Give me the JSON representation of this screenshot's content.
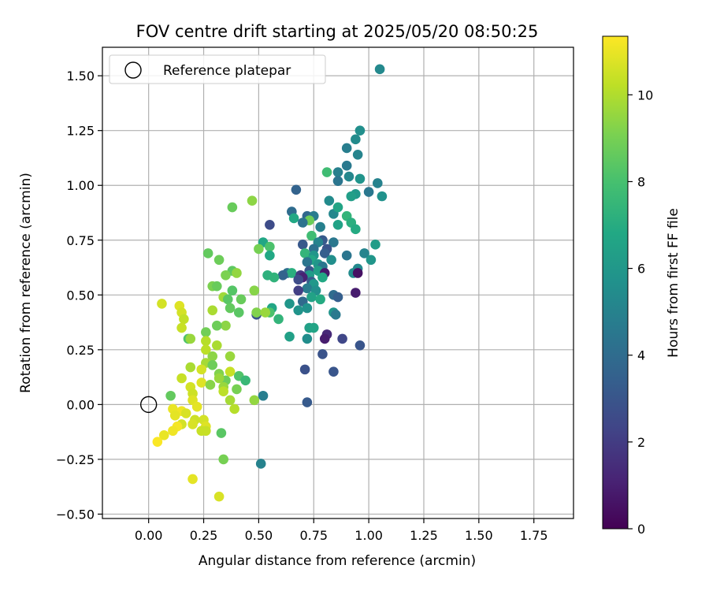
{
  "chart_data": {
    "type": "scatter",
    "title": "FOV centre drift starting at 2025/05/20 08:50:25",
    "xlabel": "Angular distance from reference (arcmin)",
    "ylabel": "Rotation from reference (arcmin)",
    "xlim": [
      -0.21,
      1.93
    ],
    "ylim": [
      -0.52,
      1.63
    ],
    "xticks": [
      0.0,
      0.25,
      0.5,
      0.75,
      1.0,
      1.25,
      1.5,
      1.75
    ],
    "xtick_labels": [
      "0.00",
      "0.25",
      "0.50",
      "0.75",
      "1.00",
      "1.25",
      "1.50",
      "1.75"
    ],
    "yticks": [
      -0.5,
      -0.25,
      0.0,
      0.25,
      0.5,
      0.75,
      1.0,
      1.25,
      1.5
    ],
    "ytick_labels": [
      "−0.50",
      "−0.25",
      "0.00",
      "0.25",
      "0.50",
      "0.75",
      "1.00",
      "1.25",
      "1.50"
    ],
    "grid": true,
    "legend": {
      "placement": "top-left",
      "entries": [
        "Reference platepar"
      ]
    },
    "reference_point": {
      "x": 0.0,
      "y": 0.0,
      "label": "Reference platepar"
    },
    "colorbar": {
      "label": "Hours from first FF file",
      "colormap": "viridis",
      "range": [
        0,
        11.35
      ],
      "ticks": [
        0,
        2,
        4,
        6,
        8,
        10
      ],
      "tick_labels": [
        "0",
        "2",
        "4",
        "6",
        "8",
        "10"
      ]
    },
    "points": [
      [
        1.05,
        1.53,
        5.3
      ],
      [
        0.96,
        1.25,
        5.6
      ],
      [
        0.94,
        1.21,
        5.4
      ],
      [
        0.9,
        1.17,
        4.8
      ],
      [
        0.95,
        1.14,
        5.1
      ],
      [
        0.9,
        1.09,
        4.6
      ],
      [
        0.86,
        1.06,
        4.9
      ],
      [
        0.91,
        1.04,
        5.2
      ],
      [
        0.86,
        1.02,
        4.4
      ],
      [
        0.96,
        1.03,
        5.8
      ],
      [
        0.81,
        1.06,
        7.8
      ],
      [
        1.04,
        1.01,
        5.0
      ],
      [
        0.67,
        0.98,
        3.6
      ],
      [
        0.94,
        0.96,
        6.0
      ],
      [
        1.0,
        0.97,
        4.5
      ],
      [
        0.92,
        0.95,
        6.3
      ],
      [
        1.06,
        0.95,
        5.7
      ],
      [
        0.82,
        0.93,
        5.4
      ],
      [
        0.84,
        0.87,
        5.2
      ],
      [
        0.86,
        0.9,
        6.6
      ],
      [
        0.65,
        0.88,
        4.0
      ],
      [
        0.72,
        0.86,
        3.8
      ],
      [
        0.75,
        0.86,
        4.7
      ],
      [
        0.66,
        0.85,
        6.8
      ],
      [
        0.9,
        0.86,
        7.4
      ],
      [
        0.73,
        0.84,
        8.8
      ],
      [
        0.86,
        0.82,
        6.5
      ],
      [
        0.92,
        0.83,
        7.1
      ],
      [
        0.55,
        0.82,
        2.6
      ],
      [
        0.7,
        0.83,
        4.3
      ],
      [
        0.78,
        0.81,
        4.9
      ],
      [
        0.94,
        0.8,
        6.9
      ],
      [
        0.74,
        0.77,
        7.8
      ],
      [
        0.79,
        0.75,
        3.2
      ],
      [
        0.77,
        0.74,
        5.1
      ],
      [
        0.84,
        0.74,
        4.5
      ],
      [
        0.52,
        0.74,
        6.7
      ],
      [
        1.03,
        0.73,
        6.2
      ],
      [
        0.7,
        0.73,
        3.1
      ],
      [
        0.75,
        0.71,
        4.2
      ],
      [
        0.81,
        0.71,
        3.0
      ],
      [
        0.55,
        0.72,
        8.1
      ],
      [
        0.5,
        0.71,
        9.0
      ],
      [
        0.71,
        0.69,
        7.4
      ],
      [
        0.8,
        0.69,
        3.4
      ],
      [
        0.98,
        0.69,
        5.1
      ],
      [
        0.75,
        0.68,
        5.9
      ],
      [
        0.9,
        0.68,
        4.4
      ],
      [
        0.55,
        0.68,
        6.8
      ],
      [
        0.74,
        0.66,
        6.7
      ],
      [
        0.83,
        0.66,
        5.6
      ],
      [
        1.01,
        0.66,
        5.9
      ],
      [
        0.72,
        0.65,
        4.4
      ],
      [
        0.77,
        0.64,
        5.9
      ],
      [
        0.79,
        0.63,
        4.5
      ],
      [
        0.95,
        0.62,
        5.3
      ],
      [
        0.73,
        0.61,
        3.1
      ],
      [
        0.77,
        0.61,
        6.4
      ],
      [
        0.93,
        0.6,
        5.4
      ],
      [
        0.8,
        0.6,
        0.8
      ],
      [
        0.95,
        0.6,
        0.5
      ],
      [
        0.63,
        0.6,
        4.1
      ],
      [
        0.73,
        0.59,
        6.2
      ],
      [
        0.65,
        0.6,
        7.1
      ],
      [
        0.69,
        0.59,
        1.9
      ],
      [
        0.61,
        0.59,
        3.6
      ],
      [
        0.7,
        0.58,
        1.1
      ],
      [
        0.79,
        0.58,
        6.8
      ],
      [
        0.54,
        0.59,
        7.2
      ],
      [
        0.57,
        0.58,
        7.3
      ],
      [
        0.68,
        0.57,
        2.6
      ],
      [
        0.74,
        0.56,
        3.3
      ],
      [
        0.75,
        0.55,
        6.0
      ],
      [
        0.72,
        0.53,
        4.7
      ],
      [
        0.68,
        0.52,
        2.1
      ],
      [
        0.76,
        0.52,
        5.6
      ],
      [
        0.84,
        0.5,
        4.0
      ],
      [
        0.94,
        0.51,
        0.9
      ],
      [
        0.86,
        0.49,
        3.4
      ],
      [
        0.74,
        0.49,
        6.5
      ],
      [
        0.78,
        0.48,
        6.9
      ],
      [
        0.7,
        0.47,
        3.9
      ],
      [
        0.64,
        0.46,
        5.9
      ],
      [
        0.72,
        0.44,
        5.7
      ],
      [
        0.56,
        0.44,
        6.7
      ],
      [
        0.68,
        0.43,
        5.8
      ],
      [
        0.84,
        0.42,
        5.8
      ],
      [
        0.55,
        0.42,
        8.1
      ],
      [
        0.85,
        0.41,
        4.6
      ],
      [
        0.49,
        0.41,
        3.0
      ],
      [
        0.59,
        0.39,
        7.4
      ],
      [
        0.73,
        0.35,
        6.4
      ],
      [
        0.75,
        0.35,
        6.6
      ],
      [
        0.64,
        0.31,
        6.4
      ],
      [
        0.72,
        0.3,
        5.5
      ],
      [
        0.81,
        0.32,
        1.3
      ],
      [
        0.8,
        0.3,
        0.9
      ],
      [
        0.88,
        0.3,
        2.4
      ],
      [
        0.96,
        0.27,
        3.0
      ],
      [
        0.79,
        0.23,
        2.9
      ],
      [
        0.71,
        0.16,
        2.8
      ],
      [
        0.84,
        0.15,
        3.0
      ],
      [
        0.72,
        0.01,
        3.2
      ],
      [
        0.52,
        0.04,
        4.8
      ],
      [
        0.51,
        -0.27,
        5.0
      ],
      [
        0.47,
        0.93,
        9.4
      ],
      [
        0.38,
        0.9,
        8.7
      ],
      [
        0.27,
        0.69,
        8.6
      ],
      [
        0.32,
        0.66,
        8.8
      ],
      [
        0.38,
        0.61,
        8.5
      ],
      [
        0.35,
        0.59,
        9.1
      ],
      [
        0.4,
        0.6,
        9.5
      ],
      [
        0.29,
        0.54,
        9.1
      ],
      [
        0.31,
        0.54,
        8.7
      ],
      [
        0.48,
        0.52,
        9.3
      ],
      [
        0.38,
        0.52,
        8.3
      ],
      [
        0.34,
        0.49,
        9.7
      ],
      [
        0.36,
        0.48,
        8.4
      ],
      [
        0.42,
        0.48,
        8.7
      ],
      [
        0.37,
        0.44,
        8.6
      ],
      [
        0.29,
        0.43,
        9.9
      ],
      [
        0.41,
        0.42,
        8.4
      ],
      [
        0.49,
        0.42,
        9.2
      ],
      [
        0.53,
        0.42,
        9.6
      ],
      [
        0.35,
        0.36,
        9.4
      ],
      [
        0.31,
        0.36,
        8.8
      ],
      [
        0.26,
        0.33,
        8.9
      ],
      [
        0.18,
        0.3,
        8.2
      ],
      [
        0.19,
        0.3,
        9.6
      ],
      [
        0.26,
        0.29,
        10.1
      ],
      [
        0.31,
        0.27,
        9.9
      ],
      [
        0.26,
        0.25,
        10.2
      ],
      [
        0.29,
        0.22,
        9.4
      ],
      [
        0.37,
        0.22,
        9.6
      ],
      [
        0.26,
        0.19,
        9.8
      ],
      [
        0.29,
        0.18,
        8.8
      ],
      [
        0.19,
        0.17,
        9.9
      ],
      [
        0.24,
        0.16,
        10.6
      ],
      [
        0.32,
        0.14,
        9.2
      ],
      [
        0.37,
        0.15,
        10.4
      ],
      [
        0.41,
        0.13,
        8.2
      ],
      [
        0.35,
        0.11,
        8.8
      ],
      [
        0.32,
        0.12,
        9.6
      ],
      [
        0.44,
        0.11,
        7.6
      ],
      [
        0.24,
        0.1,
        10.8
      ],
      [
        0.15,
        0.12,
        10.4
      ],
      [
        0.28,
        0.09,
        9.3
      ],
      [
        0.34,
        0.08,
        9.6
      ],
      [
        0.4,
        0.07,
        9.0
      ],
      [
        0.19,
        0.08,
        10.6
      ],
      [
        0.2,
        0.05,
        10.5
      ],
      [
        0.34,
        0.06,
        10.2
      ],
      [
        0.1,
        0.04,
        8.6
      ],
      [
        0.37,
        0.02,
        9.8
      ],
      [
        0.48,
        0.02,
        9.5
      ],
      [
        0.2,
        0.02,
        10.8
      ],
      [
        0.39,
        -0.02,
        10.1
      ],
      [
        0.22,
        -0.01,
        10.9
      ],
      [
        0.11,
        -0.02,
        11.0
      ],
      [
        0.15,
        -0.03,
        11.1
      ],
      [
        0.17,
        -0.04,
        10.7
      ],
      [
        0.12,
        -0.05,
        10.9
      ],
      [
        0.25,
        -0.07,
        10.6
      ],
      [
        0.21,
        -0.07,
        10.5
      ],
      [
        0.26,
        -0.1,
        10.8
      ],
      [
        0.15,
        -0.09,
        10.6
      ],
      [
        0.2,
        -0.09,
        10.7
      ],
      [
        0.13,
        -0.1,
        11.2
      ],
      [
        0.11,
        -0.12,
        11.1
      ],
      [
        0.24,
        -0.12,
        10.4
      ],
      [
        0.26,
        -0.12,
        10.4
      ],
      [
        0.33,
        -0.13,
        8.4
      ],
      [
        0.07,
        -0.14,
        11.0
      ],
      [
        0.04,
        -0.17,
        11.3
      ],
      [
        0.34,
        -0.25,
        9.0
      ],
      [
        0.2,
        -0.34,
        10.9
      ],
      [
        0.32,
        -0.42,
        10.7
      ],
      [
        0.06,
        0.46,
        10.6
      ],
      [
        0.14,
        0.45,
        10.8
      ],
      [
        0.15,
        0.42,
        10.6
      ],
      [
        0.16,
        0.39,
        10.3
      ],
      [
        0.15,
        0.35,
        10.4
      ]
    ]
  }
}
